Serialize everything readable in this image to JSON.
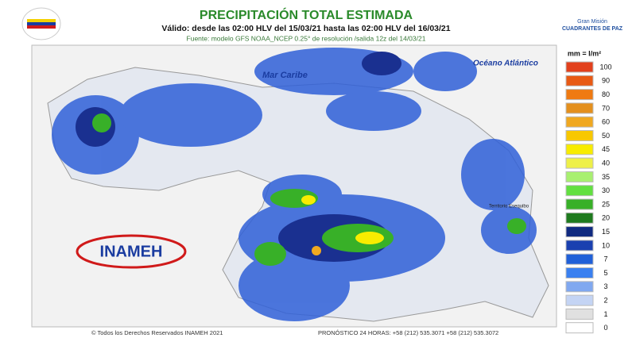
{
  "header": {
    "title": "PRECIPITACIÓN TOTAL ESTIMADA",
    "subtitle": "Válido: desde las 02:00 HLV del 15/03/21 hasta las 02:00 HLV del 16/03/21",
    "source": "Fuente: modelo GFS NOAA_NCEP 0.25° de resolución /salida 12z del 14/03/21",
    "partner": "Gran Misión",
    "partner_name": "CUADRANTES DE PAZ"
  },
  "map": {
    "labels": [
      "Mar Caribe",
      "Océano Atlántico",
      "Territorio Esequibo"
    ],
    "logo": "INAMEH"
  },
  "legend": {
    "unit": "mm = l/m²",
    "items": [
      {
        "value": 100,
        "color": "#e2401c"
      },
      {
        "value": 90,
        "color": "#e85a14"
      },
      {
        "value": 80,
        "color": "#ef7a12"
      },
      {
        "value": 70,
        "color": "#e4901e"
      },
      {
        "value": 60,
        "color": "#f0a820"
      },
      {
        "value": 50,
        "color": "#f8c800"
      },
      {
        "value": 45,
        "color": "#f8ec00"
      },
      {
        "value": 40,
        "color": "#eef048"
      },
      {
        "value": 35,
        "color": "#a8f070"
      },
      {
        "value": 30,
        "color": "#62e040"
      },
      {
        "value": 25,
        "color": "#38b028"
      },
      {
        "value": 20,
        "color": "#1e7a1e"
      },
      {
        "value": 15,
        "color": "#102a80"
      },
      {
        "value": 10,
        "color": "#1a40b0"
      },
      {
        "value": 7,
        "color": "#2060d8"
      },
      {
        "value": 5,
        "color": "#3a80f0"
      },
      {
        "value": 3,
        "color": "#80a8f0"
      },
      {
        "value": 2,
        "color": "#c4d4f4"
      },
      {
        "value": 1,
        "color": "#e0e0e0"
      },
      {
        "value": 0,
        "color": "#ffffff"
      }
    ]
  },
  "footer": {
    "copyright": "© Todos los Derechos Reservados INAMEH 2021",
    "contact": "PRONÓSTICO 24 HORAS: +58 (212) 535.3071 +58 (212) 535.3072"
  }
}
